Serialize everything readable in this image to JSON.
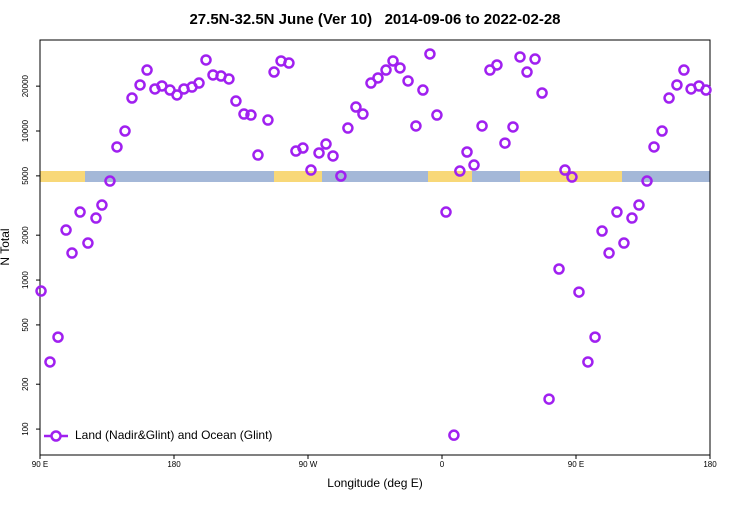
{
  "chart_data": {
    "type": "scatter",
    "title": "27.5N-32.5N June (Ver 10)   2014-09-06 to 2022-02-28",
    "x_label": "Longitude (deg E)",
    "y_label": "N Total",
    "log_y": true,
    "legend": "bottom-left",
    "xlim": [
      90,
      540
    ],
    "xticks": [
      {
        "value": 90,
        "label": "90 E"
      },
      180,
      {
        "value": 270,
        "label": "90 W"
      },
      {
        "value": 360,
        "label": "0"
      },
      {
        "value": 450,
        "label": "90 E"
      },
      {
        "value": 540,
        "label": "180"
      }
    ],
    "ylim": [
      67,
      40800
    ],
    "yticks": [
      100,
      200,
      500,
      1000,
      2000,
      5000,
      10000,
      20000
    ],
    "x": [
      90.7,
      96.7,
      102.1,
      107.5,
      111.5,
      116.9,
      122.2,
      127.6,
      131.6,
      137.0,
      141.7,
      147.1,
      151.8,
      157.2,
      161.9,
      167.2,
      171.9,
      177.3,
      182.0,
      186.7,
      192.1,
      196.8,
      201.5,
      206.2,
      211.6,
      216.9,
      221.6,
      227.0,
      231.7,
      236.4,
      243.1,
      247.2,
      251.9,
      257.2,
      261.9,
      266.6,
      272.0,
      277.4,
      282.1,
      286.8,
      292.1,
      296.8,
      302.2,
      306.9,
      312.3,
      317.0,
      322.4,
      327.1,
      331.8,
      337.2,
      342.5,
      347.2,
      351.9,
      356.6,
      362.7,
      368.0,
      372.0,
      376.8,
      381.5,
      386.9,
      392.2,
      396.9,
      402.3,
      407.7,
      412.4,
      417.1,
      422.5,
      427.2,
      431.9,
      438.6,
      442.6,
      447.3,
      452.0,
      458.0,
      462.8,
      467.5,
      472.2,
      477.5,
      482.2,
      487.6,
      492.3,
      497.7,
      502.4,
      507.8,
      512.5,
      517.8,
      522.5,
      527.3,
      532.6,
      537.3
    ],
    "series": [
      {
        "name": "Land (Nadir&Glint) and Ocean (Glint)",
        "color": "#a020f0",
        "values": [
          844,
          282,
          414,
          2166,
          1518,
          2860,
          1771,
          2606,
          3187,
          4616,
          7814,
          10000,
          16650,
          20370,
          25650,
          19140,
          20050,
          18840,
          17450,
          19140,
          19730,
          20990,
          29980,
          23770,
          23390,
          22340,
          15890,
          13000,
          12800,
          6900,
          11850,
          24880,
          29510,
          28580,
          7340,
          7690,
          5470,
          7120,
          8180,
          6800,
          4990,
          10470,
          14490,
          13000,
          20990,
          22700,
          25650,
          29510,
          26480,
          21670,
          10810,
          18840,
          32880,
          12800,
          2860,
          91,
          5390,
          7230,
          5910,
          10810,
          25650,
          27730,
          8300,
          10640,
          31390,
          24880,
          30410,
          17990,
          159,
          1186,
          5470,
          4910,
          830,
          282,
          414,
          2133,
          1518,
          2860,
          1771,
          2606,
          3187,
          4616,
          7814,
          10000,
          16650,
          20370,
          25650,
          19140,
          20050,
          18840
        ]
      }
    ]
  }
}
